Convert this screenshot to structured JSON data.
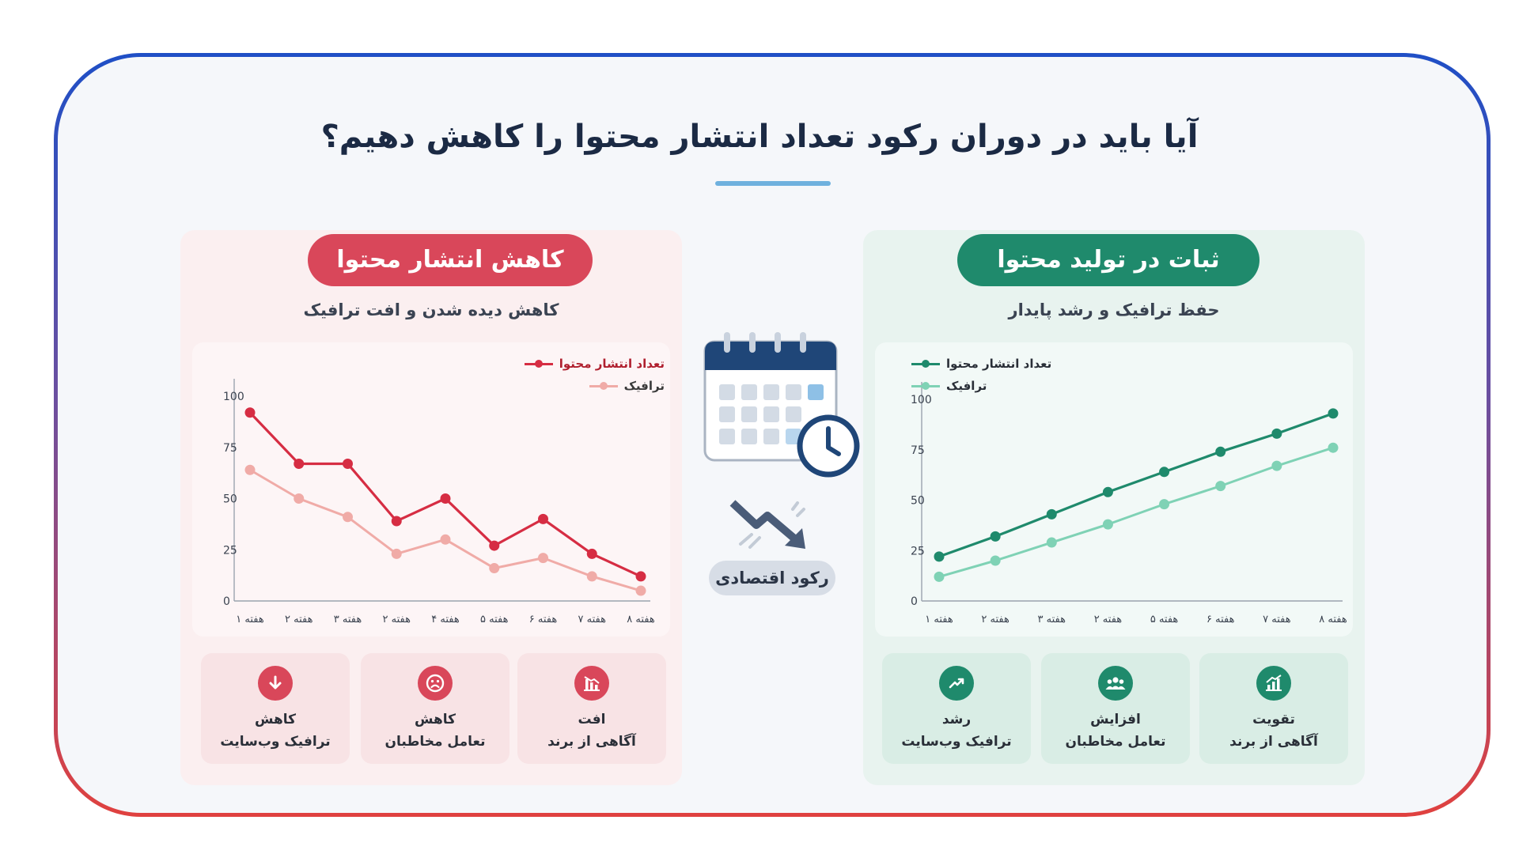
{
  "title": "آیا باید در دوران رکود تعداد انتشار محتوا را کاهش دهیم؟",
  "colors": {
    "red": "#d9475a",
    "red_line": "#d62d43",
    "red_light": "#f0aba7",
    "green": "#1f8a6c",
    "green_light": "#7fd2b5",
    "navy": "#1b3e73"
  },
  "center": {
    "calendar_icon": "calendar-clock-icon",
    "trend_icon": "trend-down-arrow-icon",
    "label": "رکود اقتصادی"
  },
  "left_panel": {
    "heading": "کاهش انتشار محتوا",
    "subtitle": "کاهش دیده شدن و افت ترافیک",
    "metrics": [
      {
        "icon": "arrow-down-icon",
        "line1": "کاهش",
        "line2": "ترافیک وب‌سایت"
      },
      {
        "icon": "sad-face-icon",
        "line1": "کاهش",
        "line2": "تعامل مخاطبان"
      },
      {
        "icon": "bar-chart-down-icon",
        "line1": "افت",
        "line2": "آگاهی از برند"
      }
    ]
  },
  "right_panel": {
    "heading": "ثبات در تولید محتوا",
    "subtitle": "حفظ ترافیک و رشد پایدار",
    "metrics": [
      {
        "icon": "trend-up-icon",
        "line1": "رشد",
        "line2": "ترافیک وب‌سایت"
      },
      {
        "icon": "users-icon",
        "line1": "افزایش",
        "line2": "تعامل مخاطبان"
      },
      {
        "icon": "bar-chart-up-icon",
        "line1": "تقویت",
        "line2": "آگاهی از برند"
      }
    ]
  },
  "chart_data": [
    {
      "type": "line",
      "categories": [
        "هفته ۱",
        "هفته ۲",
        "هفته ۳",
        "هفته ۴",
        "هفته ۵",
        "هفته ۶",
        "هفته ۷",
        "هفته ۸",
        "هفته ۸"
      ],
      "category_labels_as_shown": [
        "هفته ۱",
        "هفته ۲",
        "هفته ۳",
        "هفته ۲",
        "هفته ۴",
        "هفته ۵",
        "هفته ۶",
        "هفته ۷",
        "هفته ۸"
      ],
      "series": [
        {
          "name": "تعداد انتشار محتوا",
          "color": "#d62d43",
          "values": [
            92,
            67,
            67,
            39,
            50,
            27,
            40,
            23,
            12
          ]
        },
        {
          "name": "ترافیک",
          "color": "#f0aba7",
          "values": [
            64,
            50,
            41,
            23,
            30,
            16,
            21,
            12,
            5
          ]
        }
      ],
      "yticks": [
        0,
        25,
        50,
        75,
        100
      ],
      "ylim": [
        0,
        100
      ],
      "grid": false,
      "legend": "top-right"
    },
    {
      "type": "line",
      "categories": [
        "هفته ۱",
        "هفته ۲",
        "هفته ۳",
        "هفته ۲",
        "هفته ۵",
        "هفته ۶",
        "هفته ۷",
        "هفته ۸"
      ],
      "series": [
        {
          "name": "تعداد انتشار محتوا",
          "color": "#1f8a6c",
          "values": [
            22,
            32,
            43,
            54,
            64,
            74,
            83,
            93
          ]
        },
        {
          "name": "ترافیک",
          "color": "#7fd2b5",
          "values": [
            12,
            20,
            29,
            38,
            48,
            57,
            67,
            76
          ]
        }
      ],
      "yticks": [
        0,
        25,
        50,
        75,
        100
      ],
      "ylim": [
        0,
        100
      ],
      "grid": false,
      "legend": "top-left"
    }
  ]
}
